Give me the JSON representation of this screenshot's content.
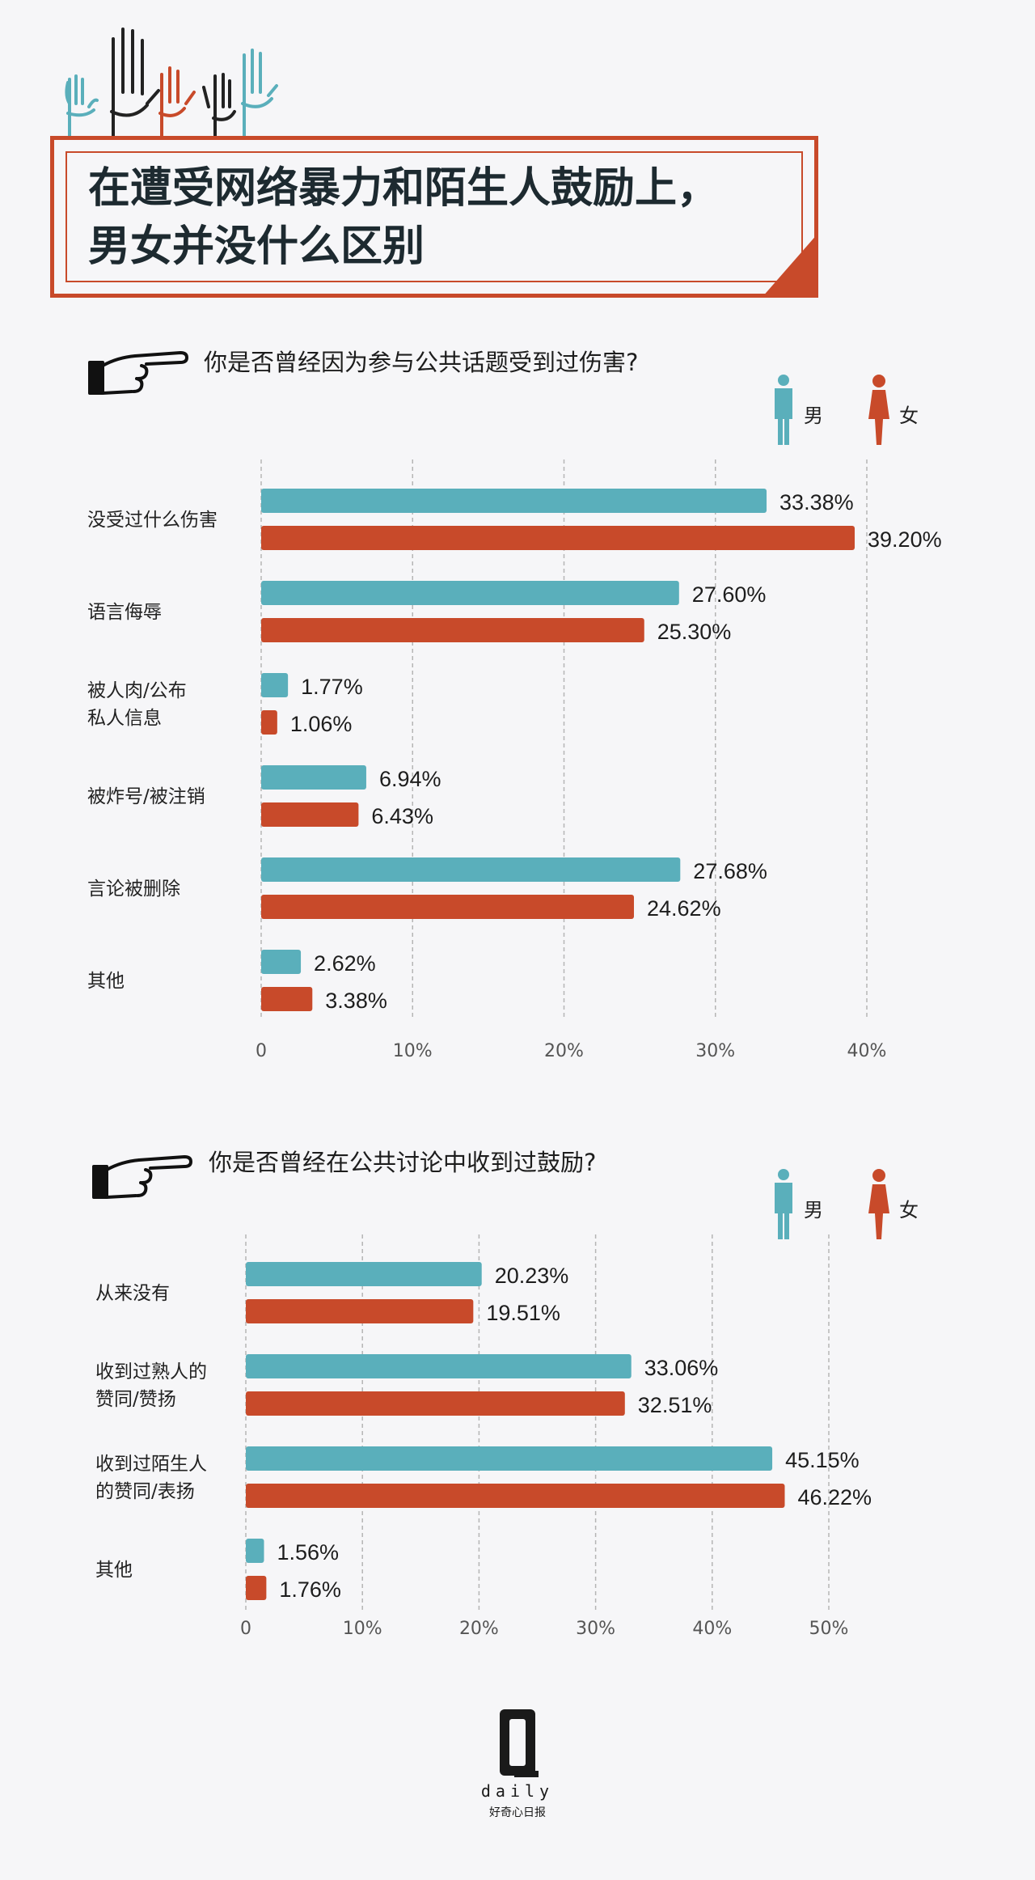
{
  "title": {
    "line1": "在遭受网络暴力和陌生人鼓励上，",
    "line2": "男女并没什么区别"
  },
  "legend": {
    "male": "男",
    "female": "女",
    "male_color": "#5aafbb",
    "female_color": "#c84a2a"
  },
  "chart_data": [
    {
      "type": "bar",
      "title": "你是否曾经因为参与公共话题受到过伤害?",
      "categories": [
        "没受过什么伤害",
        "语言侮辱",
        "被人肉/公布私人信息",
        "被炸号/被注销",
        "言论被删除",
        "其他"
      ],
      "category_lines": [
        [
          "没受过什么伤害"
        ],
        [
          "语言侮辱"
        ],
        [
          "被人肉/公布",
          "私人信息"
        ],
        [
          "被炸号/被注销"
        ],
        [
          "言论被删除"
        ],
        [
          "其他"
        ]
      ],
      "series": [
        {
          "name": "男",
          "values": [
            33.38,
            27.6,
            1.77,
            6.94,
            27.68,
            2.62
          ],
          "labels": [
            "33.38%",
            "27.60%",
            "1.77%",
            "6.94%",
            "27.68%",
            "2.62%"
          ]
        },
        {
          "name": "女",
          "values": [
            39.2,
            25.3,
            1.06,
            6.43,
            24.62,
            3.38
          ],
          "labels": [
            "39.20%",
            "25.30%",
            "1.06%",
            "6.43%",
            "24.62%",
            "3.38%"
          ]
        }
      ],
      "xlim": [
        0,
        40
      ],
      "ticks": [
        0,
        10,
        20,
        30,
        40
      ],
      "tick_labels": [
        "0",
        "10%",
        "20%",
        "30%",
        "40%"
      ],
      "grid": "vertical dashed",
      "orientation": "horizontal"
    },
    {
      "type": "bar",
      "title": "你是否曾经在公共讨论中收到过鼓励?",
      "categories": [
        "从来没有",
        "收到过熟人的赞同/赞扬",
        "收到过陌生人的赞同/表扬",
        "其他"
      ],
      "category_lines": [
        [
          "从来没有"
        ],
        [
          "收到过熟人的",
          "赞同/赞扬"
        ],
        [
          "收到过陌生人",
          "的赞同/表扬"
        ],
        [
          "其他"
        ]
      ],
      "series": [
        {
          "name": "男",
          "values": [
            20.23,
            33.06,
            45.15,
            1.56
          ],
          "labels": [
            "20.23%",
            "33.06%",
            "45.15%",
            "1.56%"
          ]
        },
        {
          "name": "女",
          "values": [
            19.51,
            32.51,
            46.22,
            1.76
          ],
          "labels": [
            "19.51%",
            "32.51%",
            "46.22%",
            "1.76%"
          ]
        }
      ],
      "xlim": [
        0,
        50
      ],
      "ticks": [
        0,
        10,
        20,
        30,
        40,
        50
      ],
      "tick_labels": [
        "0",
        "10%",
        "20%",
        "30%",
        "40%",
        "50%"
      ],
      "grid": "vertical dashed",
      "orientation": "horizontal"
    }
  ],
  "logo": {
    "mark": "Q",
    "word": "daily",
    "tagline": "好奇心日报"
  }
}
